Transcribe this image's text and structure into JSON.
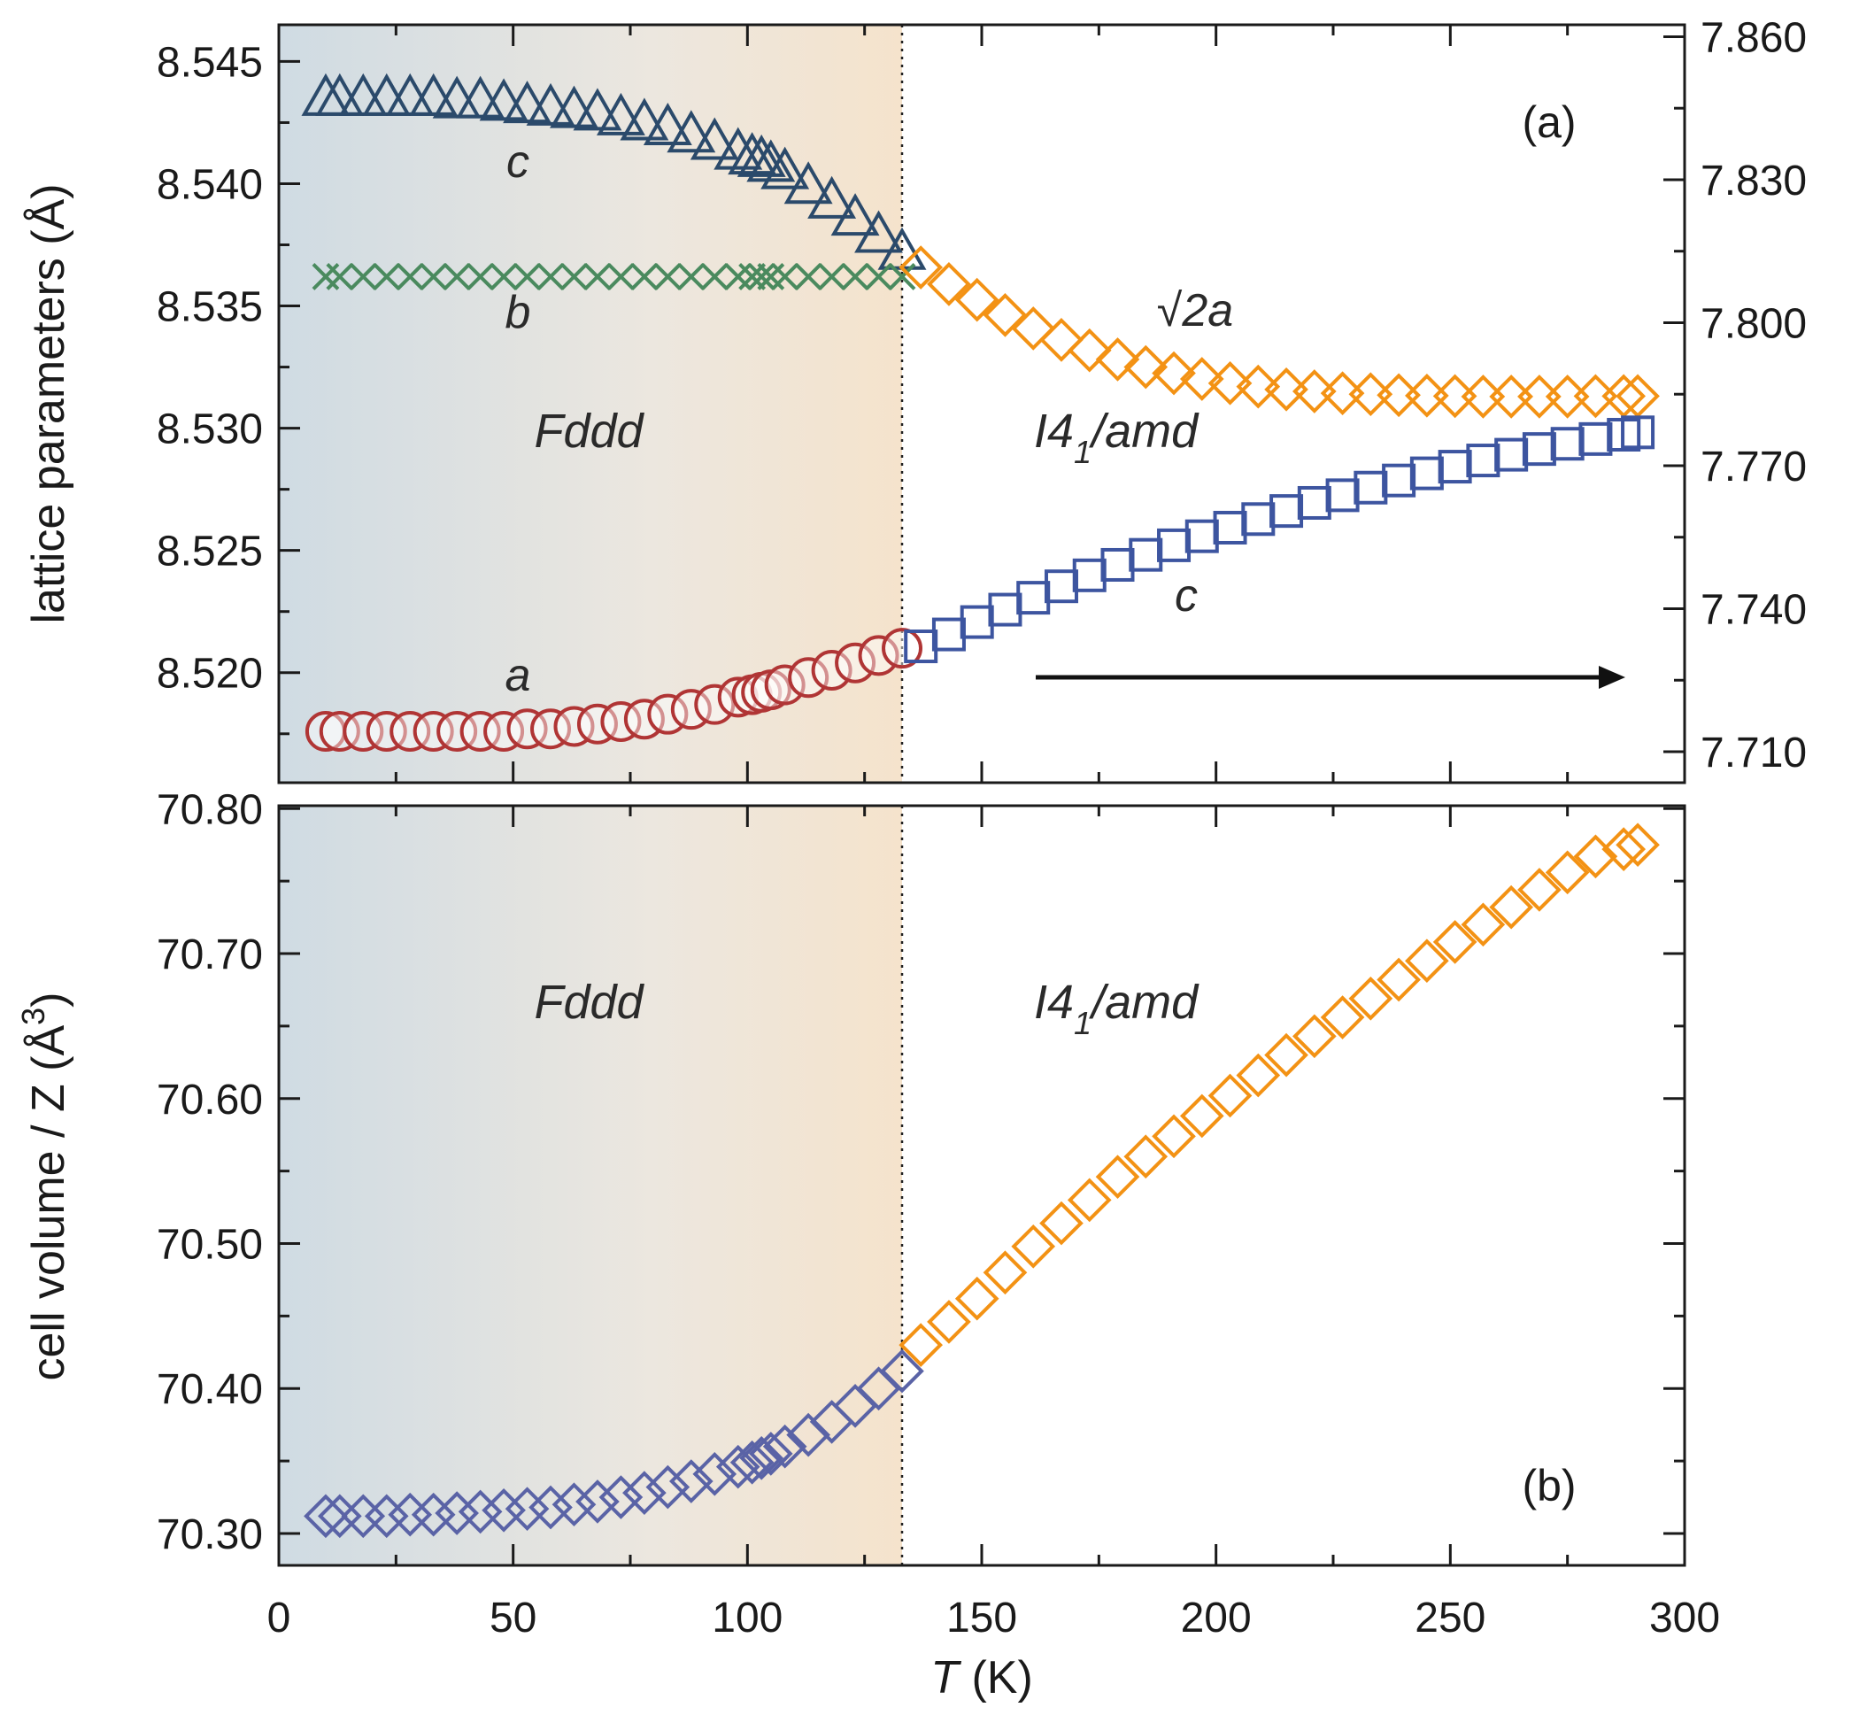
{
  "chart_data": [
    {
      "panel": "(a)",
      "type": "scatter",
      "xlabel": "T (K)",
      "xlim": [
        0,
        300
      ],
      "x_ticks": [
        0,
        50,
        100,
        150,
        200,
        250,
        300
      ],
      "ylabel": "lattice parameters (Å)",
      "ylim": [
        8.5155,
        8.5465
      ],
      "y_ticks": [
        "8.520",
        "8.525",
        "8.530",
        "8.535",
        "8.540",
        "8.545"
      ],
      "y_ticks_values": [
        8.52,
        8.525,
        8.53,
        8.535,
        8.54,
        8.545
      ],
      "y2lim": [
        7.7035,
        7.8625
      ],
      "y2_ticks": [
        "7.710",
        "7.740",
        "7.770",
        "7.800",
        "7.830",
        "7.860"
      ],
      "y2_ticks_values": [
        7.71,
        7.74,
        7.77,
        7.8,
        7.83,
        7.86
      ],
      "transition_T": 133,
      "phase_labels": {
        "low": "Fddd",
        "high_main": "I4",
        "high_sub": "1",
        "high_rest": "/amd"
      },
      "arrow": "right",
      "series": [
        {
          "name": "c",
          "label": "c",
          "marker": "triangle",
          "color": "#2b4a6b",
          "axis": "left",
          "x": [
            10,
            13,
            18,
            23,
            28,
            33,
            38,
            43,
            48,
            53,
            58,
            63,
            68,
            73,
            78,
            83,
            88,
            93,
            98,
            101,
            103,
            105,
            108,
            113,
            118,
            123,
            128,
            133
          ],
          "y": [
            8.5435,
            8.5435,
            8.5435,
            8.5435,
            8.5435,
            8.5435,
            8.5434,
            8.5434,
            8.5433,
            8.5432,
            8.5431,
            8.543,
            8.5429,
            8.5427,
            8.5425,
            8.5423,
            8.542,
            8.5417,
            8.5413,
            8.5411,
            8.541,
            8.5408,
            8.5405,
            8.5399,
            8.5393,
            8.5386,
            8.5379,
            8.5372
          ]
        },
        {
          "name": "b",
          "label": "b",
          "marker": "x",
          "color": "#4a8a5e",
          "axis": "left",
          "x": [
            10,
            13,
            18,
            23,
            28,
            33,
            38,
            43,
            48,
            53,
            58,
            63,
            68,
            73,
            78,
            83,
            88,
            93,
            98,
            101,
            103,
            105,
            108,
            113,
            118,
            123,
            128,
            133
          ],
          "y": [
            8.5362,
            8.5362,
            8.5362,
            8.5362,
            8.5362,
            8.5362,
            8.5362,
            8.5362,
            8.5362,
            8.5362,
            8.5362,
            8.5362,
            8.5362,
            8.5362,
            8.5362,
            8.5362,
            8.5362,
            8.5362,
            8.5362,
            8.5362,
            8.5362,
            8.5362,
            8.5362,
            8.5362,
            8.5362,
            8.5362,
            8.5362,
            8.5362
          ]
        },
        {
          "name": "a",
          "label": "a",
          "marker": "circle",
          "color": "#b03535",
          "axis": "left",
          "x": [
            10,
            13,
            18,
            23,
            28,
            33,
            38,
            43,
            48,
            53,
            58,
            63,
            68,
            73,
            78,
            83,
            88,
            93,
            98,
            101,
            103,
            105,
            108,
            113,
            118,
            123,
            128,
            133
          ],
          "y": [
            8.5176,
            8.5176,
            8.5176,
            8.5176,
            8.5176,
            8.5176,
            8.5176,
            8.5176,
            8.5176,
            8.5177,
            8.5177,
            8.5178,
            8.5179,
            8.518,
            8.5181,
            8.5183,
            8.5185,
            8.5187,
            8.519,
            8.5191,
            8.5192,
            8.5193,
            8.5195,
            8.5198,
            8.5201,
            8.5204,
            8.5207,
            8.521
          ]
        },
        {
          "name": "sqrt2a",
          "label": "√2a",
          "marker": "diamond",
          "color": "#f39214",
          "axis": "right",
          "x": [
            137,
            143,
            149,
            155,
            161,
            167,
            173,
            179,
            185,
            191,
            197,
            203,
            209,
            215,
            221,
            227,
            233,
            239,
            245,
            251,
            257,
            263,
            269,
            275,
            281,
            287,
            290
          ],
          "y": [
            7.8116,
            7.8081,
            7.8048,
            7.8016,
            7.7988,
            7.7964,
            7.7942,
            7.7923,
            7.7907,
            7.7894,
            7.7882,
            7.7873,
            7.7866,
            7.786,
            7.7856,
            7.7852,
            7.785,
            7.7848,
            7.7847,
            7.7846,
            7.7845,
            7.7845,
            7.7845,
            7.7845,
            7.7846,
            7.7846,
            7.7846
          ]
        },
        {
          "name": "c_tetragonal",
          "label": "c",
          "marker": "square",
          "color": "#3d55a0",
          "axis": "right",
          "x": [
            137,
            143,
            149,
            155,
            161,
            167,
            173,
            179,
            185,
            191,
            197,
            203,
            209,
            215,
            221,
            227,
            233,
            239,
            245,
            251,
            257,
            263,
            269,
            275,
            281,
            287,
            290
          ],
          "y": [
            7.7321,
            7.7346,
            7.7372,
            7.7398,
            7.7423,
            7.7447,
            7.747,
            7.7492,
            7.7513,
            7.7533,
            7.7552,
            7.757,
            7.7588,
            7.7605,
            7.7622,
            7.7638,
            7.7654,
            7.7669,
            7.7684,
            7.7698,
            7.7711,
            7.7723,
            7.7735,
            7.7746,
            7.7756,
            7.7765,
            7.777
          ]
        }
      ]
    },
    {
      "panel": "(b)",
      "type": "scatter",
      "xlabel": "T (K)",
      "xlim": [
        0,
        300
      ],
      "x_ticks": [
        0,
        50,
        100,
        150,
        200,
        250,
        300
      ],
      "ylabel": "cell volume / Z (Å³)",
      "ylabel_main": "cell volume / Z (Å",
      "ylabel_sup": "3",
      "ylabel_end": ")",
      "ylim": [
        70.278,
        70.802
      ],
      "y_ticks": [
        "70.30",
        "70.40",
        "70.50",
        "70.60",
        "70.70",
        "70.80"
      ],
      "y_ticks_values": [
        70.3,
        70.4,
        70.5,
        70.6,
        70.7,
        70.8
      ],
      "transition_T": 133,
      "phase_labels": {
        "low": "Fddd",
        "high_main": "I4",
        "high_sub": "1",
        "high_rest": "/amd"
      },
      "series": [
        {
          "name": "V_Fddd",
          "marker": "diamond",
          "color": "#5a63a6",
          "x": [
            10,
            13,
            18,
            23,
            28,
            33,
            38,
            43,
            48,
            53,
            58,
            63,
            68,
            73,
            78,
            83,
            88,
            93,
            98,
            101,
            103,
            105,
            108,
            113,
            118,
            123,
            128,
            133
          ],
          "y": [
            70.312,
            70.312,
            70.312,
            70.312,
            70.313,
            70.313,
            70.314,
            70.315,
            70.316,
            70.317,
            70.318,
            70.32,
            70.322,
            70.325,
            70.328,
            70.332,
            70.336,
            70.341,
            70.346,
            70.349,
            70.352,
            70.355,
            70.36,
            70.368,
            70.377,
            70.388,
            70.4,
            70.412
          ]
        },
        {
          "name": "V_I41amd",
          "marker": "diamond",
          "color": "#f39214",
          "x": [
            137,
            143,
            149,
            155,
            161,
            167,
            173,
            179,
            185,
            191,
            197,
            203,
            209,
            215,
            221,
            227,
            233,
            239,
            245,
            251,
            257,
            263,
            269,
            275,
            281,
            287,
            290
          ],
          "y": [
            70.43,
            70.446,
            70.462,
            70.48,
            70.498,
            70.514,
            70.53,
            70.546,
            70.56,
            70.574,
            70.588,
            70.602,
            70.616,
            70.63,
            70.643,
            70.656,
            70.669,
            70.682,
            70.695,
            70.708,
            70.72,
            70.732,
            70.744,
            70.756,
            70.767,
            70.772,
            70.775
          ]
        }
      ]
    }
  ]
}
